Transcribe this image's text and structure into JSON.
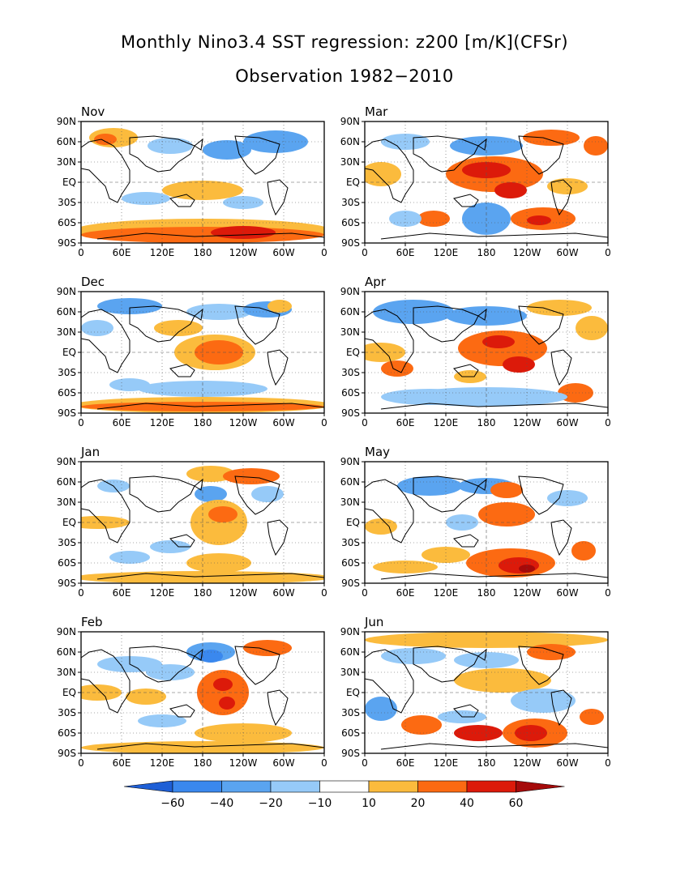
{
  "title": "Monthly Nino3.4 SST regression: z200 [m/K](CFSr)",
  "subtitle": "Observation 1982−2010",
  "lat_ticks": [
    "90N",
    "60N",
    "30N",
    "EQ",
    "30S",
    "60S",
    "90S"
  ],
  "lon_ticks": [
    "0",
    "60E",
    "120E",
    "180",
    "120W",
    "60W",
    "0"
  ],
  "panels": [
    {
      "label": "Nov",
      "col": 0,
      "row": 0
    },
    {
      "label": "Mar",
      "col": 1,
      "row": 0
    },
    {
      "label": "Dec",
      "col": 0,
      "row": 1
    },
    {
      "label": "Apr",
      "col": 1,
      "row": 1
    },
    {
      "label": "Jan",
      "col": 0,
      "row": 2
    },
    {
      "label": "May",
      "col": 1,
      "row": 2
    },
    {
      "label": "Feb",
      "col": 0,
      "row": 3
    },
    {
      "label": "Jun",
      "col": 1,
      "row": 3
    }
  ],
  "colorbar": {
    "labels": [
      "−60",
      "−40",
      "−20",
      "−10",
      "10",
      "20",
      "40",
      "60"
    ],
    "colors": [
      "#1e5fd6",
      "#3a88ee",
      "#5aa4f0",
      "#96caf8",
      "#ffffff",
      "#fbbb3d",
      "#fc6a12",
      "#dc1a0a",
      "#a50a0a"
    ]
  }
}
